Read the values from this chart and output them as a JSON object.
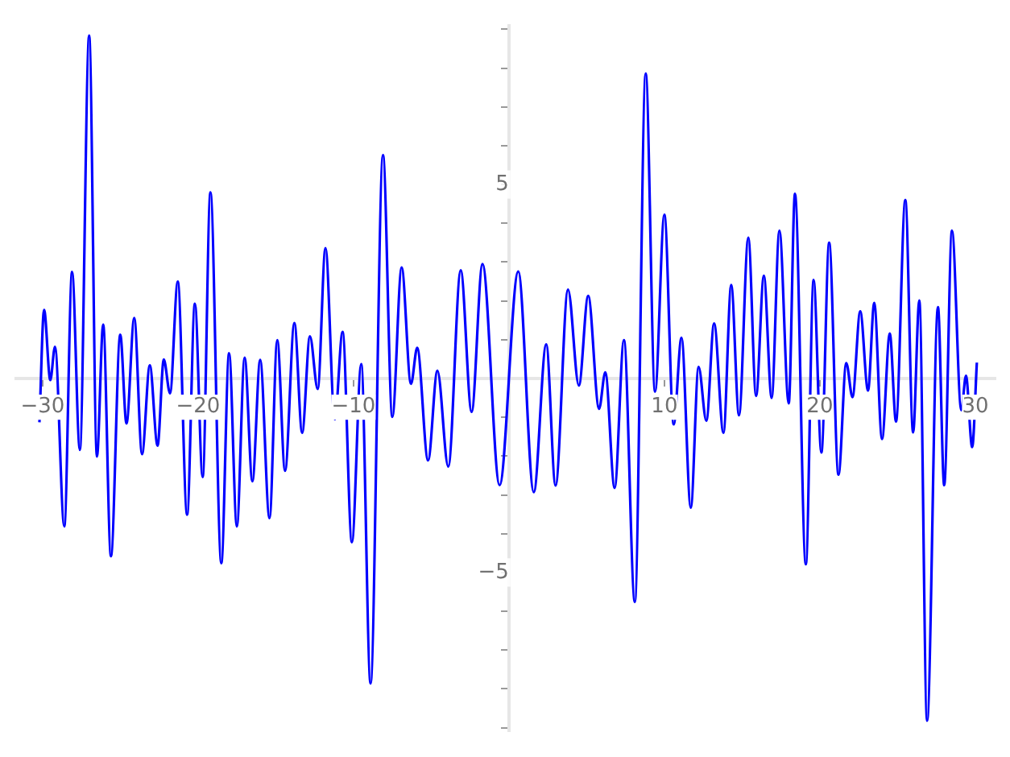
{
  "chart_data": {
    "type": "line",
    "color": "#0000ff",
    "marker": "none",
    "line_style": "solid",
    "grid": false,
    "legend": false,
    "x": [
      -30.2,
      -29.9,
      -29.5,
      -29.2,
      -28.6,
      -28.1,
      -27.6,
      -27.0,
      -26.5,
      -26.1,
      -25.6,
      -25.0,
      -24.6,
      -24.1,
      -23.6,
      -23.1,
      -22.6,
      -22.2,
      -21.8,
      -21.3,
      -20.7,
      -20.2,
      -19.7,
      -19.2,
      -18.5,
      -18.0,
      -17.5,
      -17.0,
      -16.5,
      -16.0,
      -15.4,
      -14.9,
      -14.4,
      -13.8,
      -13.3,
      -12.8,
      -12.3,
      -11.8,
      -11.2,
      -10.7,
      -10.1,
      -9.5,
      -8.9,
      -8.1,
      -7.5,
      -6.9,
      -6.3,
      -5.9,
      -5.2,
      -4.6,
      -3.9,
      -3.1,
      -2.4,
      -1.7,
      -0.6,
      0.6,
      1.6,
      2.4,
      3.0,
      3.8,
      4.5,
      5.1,
      5.8,
      6.2,
      6.8,
      7.4,
      8.1,
      8.8,
      9.4,
      10.0,
      10.6,
      11.1,
      11.7,
      12.2,
      12.7,
      13.2,
      13.8,
      14.3,
      14.8,
      15.4,
      15.9,
      16.4,
      16.9,
      17.4,
      18.0,
      18.4,
      19.1,
      19.6,
      20.1,
      20.6,
      21.2,
      21.7,
      22.1,
      22.6,
      23.1,
      23.5,
      24.0,
      24.5,
      24.9,
      25.5,
      26.0,
      26.4,
      26.9,
      27.6,
      28.0,
      28.5,
      29.1,
      29.4,
      29.8,
      30.1
    ],
    "values": [
      -1.13,
      1.77,
      -0.04,
      0.82,
      -3.81,
      2.75,
      -1.84,
      8.84,
      -2.01,
      1.39,
      -4.58,
      1.13,
      -1.16,
      1.56,
      -1.95,
      0.34,
      -1.73,
      0.49,
      -0.38,
      2.5,
      -3.51,
      1.93,
      -2.54,
      4.8,
      -4.76,
      0.65,
      -3.81,
      0.54,
      -2.65,
      0.48,
      -3.6,
      0.99,
      -2.38,
      1.43,
      -1.4,
      1.09,
      -0.27,
      3.36,
      -1.05,
      1.2,
      -4.22,
      0.37,
      -7.86,
      5.76,
      -0.99,
      2.86,
      -0.14,
      0.79,
      -2.11,
      0.2,
      -2.27,
      2.79,
      -0.86,
      2.95,
      -2.75,
      2.76,
      -2.93,
      0.88,
      -2.76,
      2.29,
      -0.18,
      2.13,
      -0.78,
      0.16,
      -2.82,
      0.99,
      -5.76,
      7.86,
      -0.34,
      4.22,
      -1.18,
      1.05,
      -3.33,
      0.3,
      -1.09,
      1.42,
      -1.4,
      2.41,
      -0.95,
      3.63,
      -0.45,
      2.65,
      -0.5,
      3.81,
      -0.64,
      4.76,
      -4.79,
      2.54,
      -1.91,
      3.5,
      -2.48,
      0.4,
      -0.48,
      1.73,
      -0.31,
      1.95,
      -1.56,
      1.16,
      -1.11,
      4.6,
      -1.39,
      2.01,
      -8.82,
      1.84,
      -2.75,
      3.81,
      -0.82,
      0.07,
      -1.77,
      0.41
    ],
    "xlim": [
      -31.7,
      31.3
    ],
    "ylim": [
      -9.1,
      9.1
    ],
    "xticks": [
      -30,
      -20,
      -10,
      10,
      20,
      30
    ],
    "yticks": [
      {
        "value": -9,
        "label": null
      },
      {
        "value": -8,
        "label": null
      },
      {
        "value": -7,
        "label": null
      },
      {
        "value": -6,
        "label": null
      },
      -5,
      {
        "value": -4,
        "label": null
      },
      {
        "value": -3,
        "label": null
      },
      {
        "value": -2,
        "label": null
      },
      {
        "value": -1,
        "label": null
      },
      {
        "value": 1,
        "label": null
      },
      {
        "value": 2,
        "label": null
      },
      {
        "value": 3,
        "label": null
      },
      {
        "value": 4,
        "label": null
      },
      5,
      {
        "value": 6,
        "label": null
      },
      {
        "value": 7,
        "label": null
      },
      {
        "value": 8,
        "label": null
      },
      {
        "value": 9,
        "label": null
      }
    ]
  }
}
